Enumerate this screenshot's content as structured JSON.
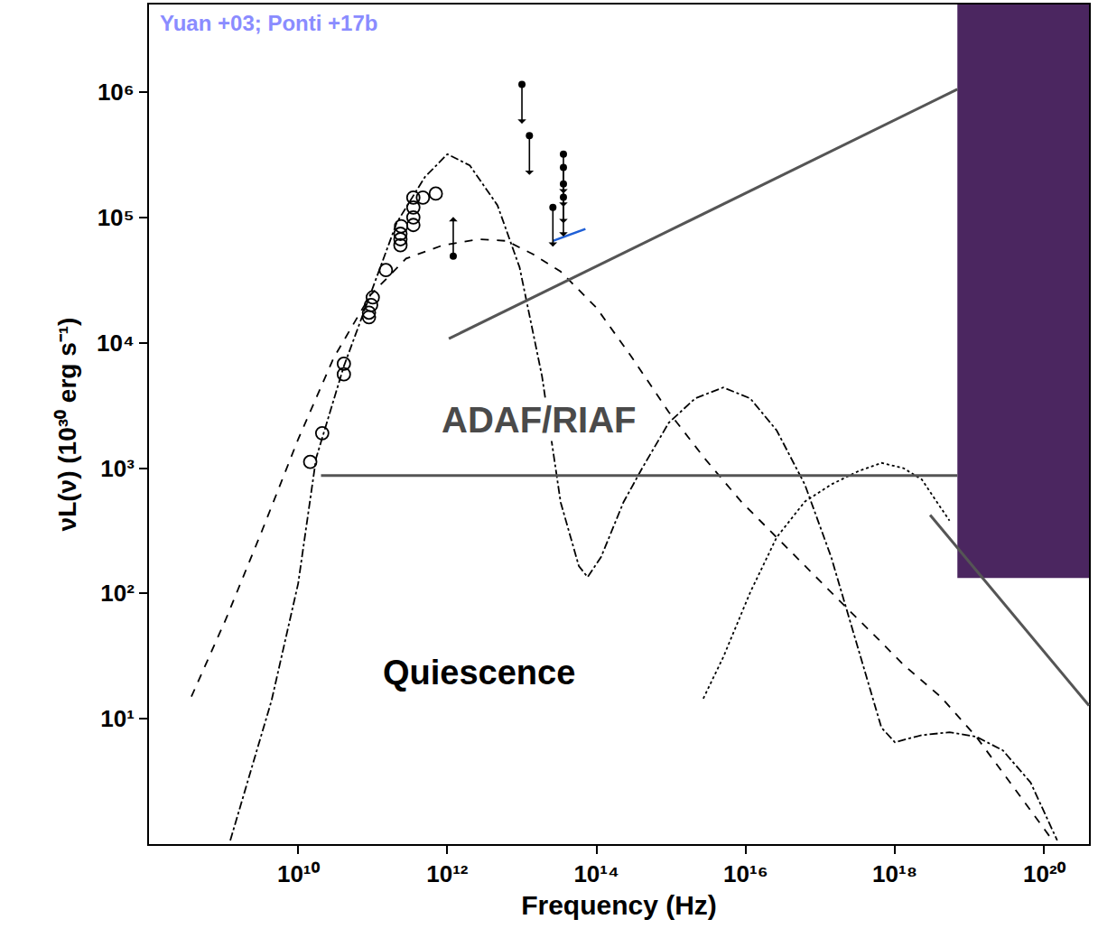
{
  "chart_data": {
    "type": "scatter",
    "log": true,
    "grid": false,
    "x_label": "Frequency (Hz)",
    "y_label": "νL(ν) (10³⁰ erg s⁻¹)",
    "xlim": [
      100000000.0,
      4e+20
    ],
    "ylim": [
      1,
      5000000.0
    ],
    "xticks": [
      {
        "value": 10000000000.0,
        "label": "10¹⁰"
      },
      {
        "value": 1000000000000.0,
        "label": "10¹²"
      },
      {
        "value": 100000000000000.0,
        "label": "10¹⁴"
      },
      {
        "value": 1e+16,
        "label": "10¹⁶"
      },
      {
        "value": 1e+18,
        "label": "10¹⁸"
      },
      {
        "value": 1e+20,
        "label": "10²⁰"
      }
    ],
    "yticks": [
      {
        "value": 10,
        "label": "10¹"
      },
      {
        "value": 100,
        "label": "10²"
      },
      {
        "value": 1000,
        "label": "10³"
      },
      {
        "value": 10000,
        "label": "10⁴"
      },
      {
        "value": 100000,
        "label": "10⁵"
      },
      {
        "value": 1000000,
        "label": "10⁶"
      }
    ],
    "annotations": [
      {
        "text": "Yuan +03; Ponti +17b",
        "color": "#8a8cff"
      },
      {
        "text": "ADAF/RIAF",
        "color": "#4a4a4a"
      },
      {
        "text": "Quiescence",
        "color": "#000000"
      }
    ],
    "series": [
      {
        "type": "scatter",
        "marker": "open-circle",
        "color": "#000000",
        "x": [
          14500000000.0,
          21000000000.0,
          41000000000.0,
          41000000000.0,
          89000000000.0,
          89000000000.0,
          95000000000.0,
          100000000000.0,
          150000000000.0,
          235000000000.0,
          235000000000.0,
          235000000000.0,
          240000000000.0,
          350000000000.0,
          350000000000.0,
          350000000000.0,
          350000000000.0,
          470000000000.0,
          700000000000.0
        ],
        "values": [
          1120,
          1900,
          5600,
          6800,
          17400,
          16000,
          20000,
          23000,
          38000,
          60000,
          67000,
          74000,
          85000,
          100000,
          87000,
          120000,
          144000,
          144000,
          155000
        ]
      },
      {
        "type": "scatter",
        "marker": "lower-limit",
        "color": "#000000",
        "x": [
          1200000000000.0
        ],
        "values": [
          49000
        ]
      },
      {
        "type": "scatter",
        "marker": "upper-limit",
        "color": "#000000",
        "x": [
          10000000000000.0,
          12600000000000.0,
          26000000000000.0,
          36000000000000.0,
          36000000000000.0,
          36000000000000.0,
          36000000000000.0
        ],
        "values": [
          1150000,
          450000,
          120000,
          320000,
          250000,
          185000,
          145000
        ]
      },
      {
        "type": "line",
        "line_style": "solid",
        "color": "#1f5fd6",
        "x": [
          26000000000000.0,
          71000000000000.0
        ],
        "values": [
          65000,
          81000
        ]
      },
      {
        "type": "line",
        "line_style": "dashdot",
        "color": "#000000",
        "x": [
          1230000000.0,
          4400000000.0,
          10000000000.0,
          17400000000.0,
          41000000000.0,
          93000000000.0,
          210000000000.0,
          500000000000.0,
          1000000000000.0,
          2000000000000.0,
          4700000000000.0,
          9300000000000.0,
          18600000000000.0,
          33000000000000.0,
          58000000000000.0,
          76000000000000.0,
          115000000000000.0,
          230000000000000.0,
          410000000000000.0,
          930000000000000.0,
          2100000000000000.0,
          5000000000000000.0,
          1.15e+16,
          2.6e+16,
          6.2e+16,
          1.4e+17,
          2.45e+17,
          4.4e+17,
          6.6e+17,
          1e+18,
          2.3e+18,
          5.4e+18,
          1.23e+19,
          2.8e+19,
          6.6e+19,
          1.5e+20
        ],
        "values": [
          1.07,
          14,
          120,
          1200,
          6500,
          24000,
          91000,
          210000,
          320000,
          260000,
          125000,
          40000,
          5400,
          535,
          165,
          135,
          195,
          535,
          1000,
          2300,
          3600,
          4400,
          3600,
          2000,
          740,
          195,
          62,
          19.5,
          8.5,
          6.5,
          7.4,
          7.8,
          7.2,
          5.6,
          3.1,
          1.07
        ]
      },
      {
        "type": "line",
        "line_style": "dash",
        "color": "#000000",
        "x": [
          370000000.0,
          1070000000.0,
          3300000000.0,
          10000000000.0,
          30000000000.0,
          93000000000.0,
          280000000000.0,
          870000000000.0,
          2600000000000.0,
          6200000000000.0,
          14000000000000.0,
          33000000000000.0,
          100000000000000.0,
          300000000000000.0,
          930000000000000.0,
          2800000000000000.0,
          8700000000000000.0,
          2.6e+16,
          8.1e+16,
          2.45e+17,
          5.8e+17,
          1.3e+18,
          4.1e+18,
          1.23e+19,
          3.8e+19,
          8.7e+19,
          1.3e+20
        ],
        "values": [
          15,
          62,
          320,
          1700,
          7600,
          24000,
          47000,
          60000,
          67000,
          65000,
          51000,
          37000,
          19000,
          7600,
          2800,
          1200,
          540,
          280,
          140,
          73,
          44,
          27,
          15,
          7.2,
          2.9,
          1.5,
          1.07
        ]
      },
      {
        "type": "line",
        "line_style": "dot",
        "color": "#000000",
        "x": [
          2700000000000000.0,
          5000000000000000.0,
          1.15e+16,
          2.6e+16,
          6.2e+16,
          1.4e+17,
          3.3e+17,
          6.6e+17,
          1.3e+18,
          2.3e+18,
          5.4e+18
        ],
        "values": [
          14.5,
          31,
          102,
          280,
          540,
          740,
          950,
          1100,
          1000,
          810,
          380
        ]
      }
    ]
  }
}
